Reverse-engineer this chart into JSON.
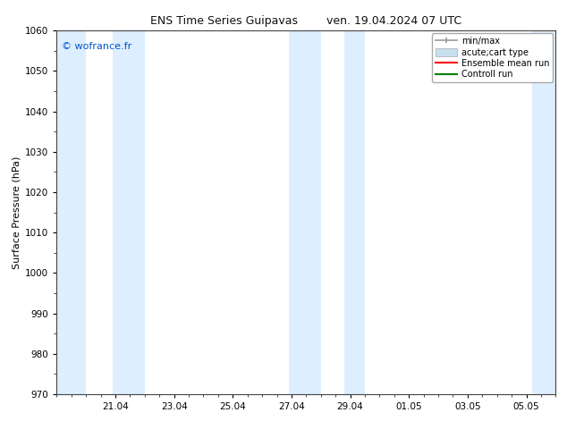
{
  "title_left": "ENS Time Series Guipavas",
  "title_right": "ven. 19.04.2024 07 UTC",
  "ylabel": "Surface Pressure (hPa)",
  "ylim": [
    970,
    1060
  ],
  "yticks": [
    970,
    980,
    990,
    1000,
    1010,
    1020,
    1030,
    1040,
    1050,
    1060
  ],
  "xtick_labels": [
    "21.04",
    "23.04",
    "25.04",
    "27.04",
    "29.04",
    "01.05",
    "03.05",
    "05.05"
  ],
  "xtick_positions": [
    2,
    4,
    6,
    8,
    10,
    12,
    14,
    16
  ],
  "num_minor_xticks": 17,
  "xlim": [
    0.0,
    17.0
  ],
  "watermark": "© wofrance.fr",
  "bg_color": "#ffffff",
  "plot_bg_color": "#ffffff",
  "shaded_bands": [
    {
      "x_start": 0.0,
      "x_end": 1.0,
      "color": "#ddeeff"
    },
    {
      "x_start": 1.9,
      "x_end": 3.0,
      "color": "#ddeeff"
    },
    {
      "x_start": 7.9,
      "x_end": 9.0,
      "color": "#ddeeff"
    },
    {
      "x_start": 9.8,
      "x_end": 10.5,
      "color": "#ddeeff"
    },
    {
      "x_start": 16.2,
      "x_end": 17.0,
      "color": "#ddeeff"
    }
  ],
  "legend_items": [
    {
      "label": "min/max",
      "color": "#999999",
      "lw": 1.2,
      "linestyle": "-",
      "type": "minmax"
    },
    {
      "label": "acute;cart type",
      "color": "#c8dff0",
      "lw": 7,
      "linestyle": "-",
      "type": "fill"
    },
    {
      "label": "Ensemble mean run",
      "color": "#ff0000",
      "lw": 1.5,
      "linestyle": "-",
      "type": "line"
    },
    {
      "label": "Controll run",
      "color": "#008000",
      "lw": 1.5,
      "linestyle": "-",
      "type": "line"
    }
  ],
  "title_fontsize": 9,
  "axis_label_fontsize": 8,
  "tick_fontsize": 7.5,
  "watermark_color": "#0055cc",
  "watermark_fontsize": 8,
  "spine_color": "#444444",
  "spine_lw": 0.8
}
